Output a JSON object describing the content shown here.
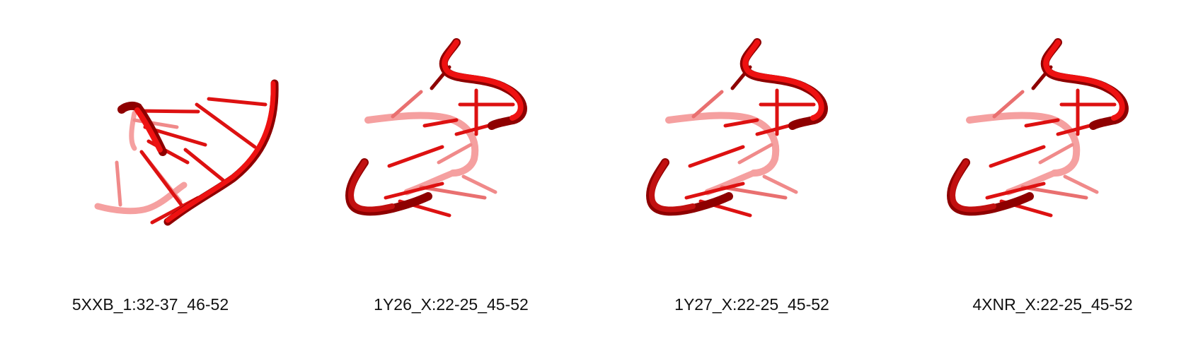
{
  "panels": [
    {
      "label": "5XXB_1:32-37_46-52",
      "view": "structure-a"
    },
    {
      "label": "1Y26_X:22-25_45-52",
      "view": "structure-b"
    },
    {
      "label": "1Y27_X:22-25_45-52",
      "view": "structure-b"
    },
    {
      "label": "4XNR_X:22-25_45-52",
      "view": "structure-b"
    }
  ],
  "colors": {
    "backbone": "#ee1111",
    "backbone_dark": "#8e0000",
    "backbone_faded": "#f5a0a0",
    "base": "#dd1111",
    "base_faded": "#f08a8a",
    "background": "#ffffff",
    "label": "#111111"
  }
}
